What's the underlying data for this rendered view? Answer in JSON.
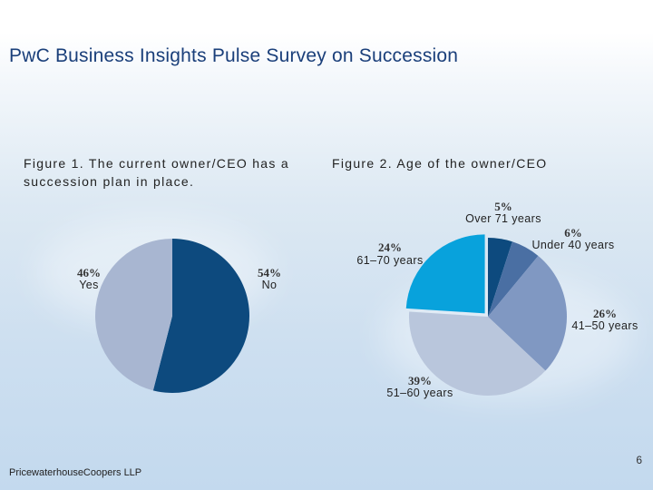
{
  "slide": {
    "title": "PwC Business Insights Pulse Survey on Succession",
    "footer": "PricewaterhouseCoopers LLP",
    "page_number": "6"
  },
  "chart_data": [
    {
      "type": "pie",
      "title": "Figure 1. The current owner/CEO has a succession plan in place.",
      "slices": [
        {
          "label": "No",
          "pct_label": "54%",
          "value": 54,
          "color": "#0d4a7e"
        },
        {
          "label": "Yes",
          "pct_label": "46%",
          "value": 46,
          "color": "#a8b6d1"
        }
      ]
    },
    {
      "type": "pie",
      "title": "Figure 2. Age of the owner/CEO",
      "slices": [
        {
          "label": "Over 71 years",
          "pct_label": "5%",
          "value": 5,
          "color": "#0d4a7e"
        },
        {
          "label": "Under 40 years",
          "pct_label": "6%",
          "value": 6,
          "color": "#4a6fa3"
        },
        {
          "label": "41–50 years",
          "pct_label": "26%",
          "value": 26,
          "color": "#8098c2"
        },
        {
          "label": "51–60 years",
          "pct_label": "39%",
          "value": 39,
          "color": "#b9c6dc"
        },
        {
          "label": "61–70 years",
          "pct_label": "24%",
          "value": 24,
          "color": "#08a2dc"
        }
      ]
    }
  ]
}
